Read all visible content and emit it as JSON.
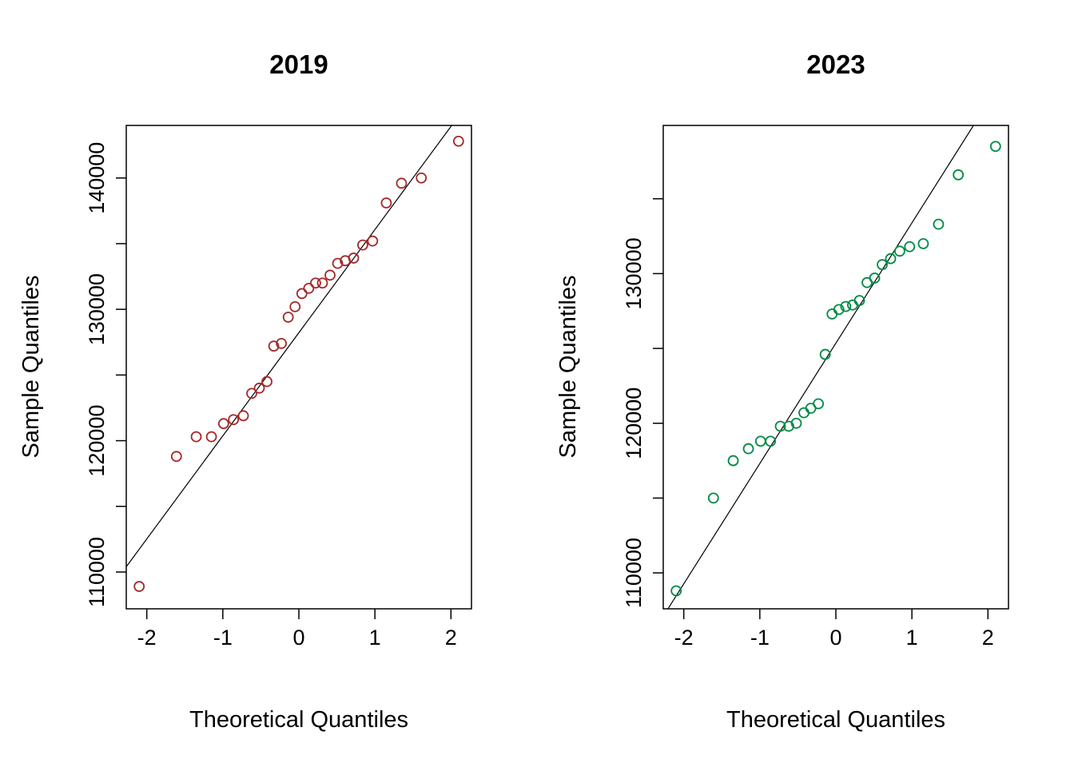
{
  "chart_data": [
    {
      "type": "scatter",
      "title": "2019",
      "xlabel": "Theoretical Quantiles",
      "ylabel": "Sample Quantiles",
      "color": "#A52A2A",
      "xlim": [
        -2.27,
        2.27
      ],
      "ylim": [
        107200,
        144000
      ],
      "x_ticks": [
        -2,
        -1,
        0,
        1,
        2
      ],
      "y_ticks": [
        110000,
        115000,
        120000,
        125000,
        130000,
        135000,
        140000
      ],
      "y_tick_labels": [
        "110000",
        "",
        "120000",
        "",
        "130000",
        "",
        "140000"
      ],
      "reference_line": {
        "x": [
          -2.27,
          2.01
        ],
        "y": [
          110400,
          144000
        ]
      },
      "points": [
        {
          "x": -2.1,
          "y": 108900
        },
        {
          "x": -1.61,
          "y": 118800
        },
        {
          "x": -1.35,
          "y": 120300
        },
        {
          "x": -1.15,
          "y": 120300
        },
        {
          "x": -0.99,
          "y": 121300
        },
        {
          "x": -0.86,
          "y": 121600
        },
        {
          "x": -0.73,
          "y": 121900
        },
        {
          "x": -0.62,
          "y": 123600
        },
        {
          "x": -0.52,
          "y": 124000
        },
        {
          "x": -0.42,
          "y": 124500
        },
        {
          "x": -0.33,
          "y": 127200
        },
        {
          "x": -0.23,
          "y": 127400
        },
        {
          "x": -0.14,
          "y": 129400
        },
        {
          "x": -0.05,
          "y": 130200
        },
        {
          "x": 0.04,
          "y": 131200
        },
        {
          "x": 0.13,
          "y": 131600
        },
        {
          "x": 0.22,
          "y": 132000
        },
        {
          "x": 0.31,
          "y": 132000
        },
        {
          "x": 0.41,
          "y": 132600
        },
        {
          "x": 0.51,
          "y": 133500
        },
        {
          "x": 0.61,
          "y": 133700
        },
        {
          "x": 0.72,
          "y": 133900
        },
        {
          "x": 0.84,
          "y": 134900
        },
        {
          "x": 0.97,
          "y": 135200
        },
        {
          "x": 1.15,
          "y": 138100
        },
        {
          "x": 1.35,
          "y": 139600
        },
        {
          "x": 1.61,
          "y": 140000
        },
        {
          "x": 2.1,
          "y": 142800
        }
      ]
    },
    {
      "type": "scatter",
      "title": "2023",
      "xlabel": "Theoretical Quantiles",
      "ylabel": "Sample Quantiles",
      "color": "#008B45",
      "xlim": [
        -2.27,
        2.27
      ],
      "ylim": [
        107600,
        139900
      ],
      "x_ticks": [
        -2,
        -1,
        0,
        1,
        2
      ],
      "y_ticks": [
        110000,
        115000,
        120000,
        125000,
        130000,
        135000
      ],
      "y_tick_labels": [
        "110000",
        "",
        "120000",
        "",
        "130000",
        ""
      ],
      "reference_line": {
        "x": [
          -2.27,
          1.81
        ],
        "y": [
          107100,
          139900
        ]
      },
      "points": [
        {
          "x": -2.1,
          "y": 108800
        },
        {
          "x": -1.61,
          "y": 115000
        },
        {
          "x": -1.35,
          "y": 117500
        },
        {
          "x": -1.15,
          "y": 118300
        },
        {
          "x": -0.99,
          "y": 118800
        },
        {
          "x": -0.86,
          "y": 118800
        },
        {
          "x": -0.73,
          "y": 119800
        },
        {
          "x": -0.62,
          "y": 119800
        },
        {
          "x": -0.52,
          "y": 120000
        },
        {
          "x": -0.42,
          "y": 120700
        },
        {
          "x": -0.33,
          "y": 121000
        },
        {
          "x": -0.23,
          "y": 121300
        },
        {
          "x": -0.14,
          "y": 124600
        },
        {
          "x": -0.05,
          "y": 127300
        },
        {
          "x": 0.04,
          "y": 127600
        },
        {
          "x": 0.13,
          "y": 127800
        },
        {
          "x": 0.22,
          "y": 127900
        },
        {
          "x": 0.31,
          "y": 128200
        },
        {
          "x": 0.41,
          "y": 129400
        },
        {
          "x": 0.51,
          "y": 129700
        },
        {
          "x": 0.61,
          "y": 130600
        },
        {
          "x": 0.72,
          "y": 131000
        },
        {
          "x": 0.84,
          "y": 131500
        },
        {
          "x": 0.97,
          "y": 131800
        },
        {
          "x": 1.15,
          "y": 132000
        },
        {
          "x": 1.35,
          "y": 133300
        },
        {
          "x": 1.61,
          "y": 136600
        },
        {
          "x": 2.1,
          "y": 138500
        }
      ]
    }
  ]
}
